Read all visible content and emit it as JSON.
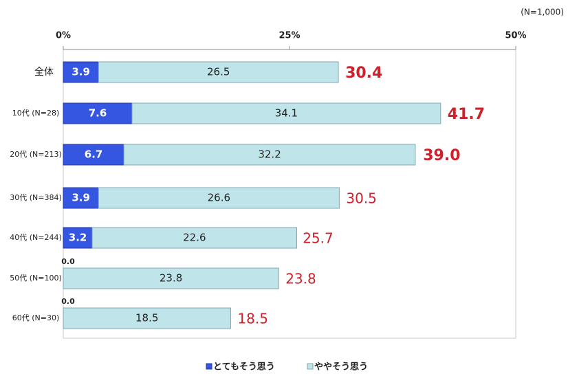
{
  "chart_data": {
    "type": "stacked-bar-horizontal",
    "note": "(N=1,000)",
    "categories": [
      "全体",
      "10代 (N=28)",
      "20代 (N=213)",
      "30代 (N=384)",
      "40代 (N=244)",
      "50代 (N=100)",
      "60代 (N=30)"
    ],
    "series": [
      {
        "name": "とてもそう思う",
        "color": "#3556e0",
        "values": [
          3.9,
          7.6,
          6.7,
          3.9,
          3.2,
          0.0,
          0.0
        ],
        "value_labels": [
          "3.9",
          "7.6",
          "6.7",
          "3.9",
          "3.2",
          "0.0",
          "0.0"
        ]
      },
      {
        "name": "ややそう思う",
        "color": "#bfe4ea",
        "values": [
          26.5,
          34.1,
          32.2,
          26.6,
          22.6,
          23.8,
          18.5
        ]
      }
    ],
    "totals": [
      30.4,
      41.7,
      39.0,
      30.5,
      25.7,
      23.8,
      18.5
    ],
    "totals_value_labels": [
      "30.4",
      "41.7",
      "39.0",
      "30.5",
      "25.7",
      "23.8",
      "18.5"
    ],
    "totals_bold": [
      true,
      true,
      true,
      false,
      false,
      false,
      false
    ],
    "totals_color": "#d0202c",
    "xlim": [
      0,
      50
    ],
    "xticks": [
      {
        "value": 0,
        "label": "0%"
      },
      {
        "value": 25,
        "label": "25%"
      },
      {
        "value": 50,
        "label": "50%"
      }
    ],
    "legend": "bottom"
  }
}
